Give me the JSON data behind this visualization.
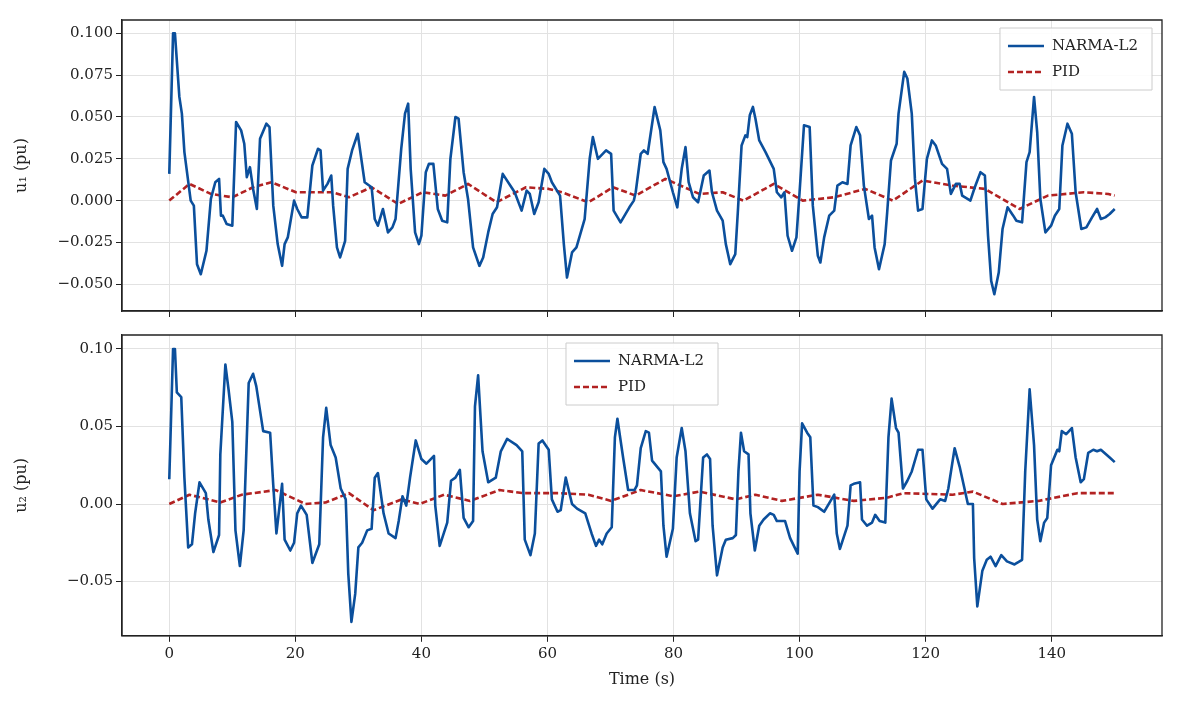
{
  "chart_data": [
    {
      "type": "line",
      "ylabel": "u₁ (pu)",
      "xlim": [
        -7.5,
        157.5
      ],
      "xticks": [
        0,
        20,
        40,
        60,
        80,
        100,
        120,
        140
      ],
      "ylim": [
        -0.066,
        0.108
      ],
      "yticks": [
        {
          "value": -0.05,
          "label": "−0.050"
        },
        {
          "value": -0.025,
          "label": "−0.025"
        },
        {
          "value": 0,
          "label": "0.000"
        },
        {
          "value": 0.025,
          "label": "0.025"
        },
        {
          "value": 0.05,
          "label": "0.050"
        },
        {
          "value": 0.075,
          "label": "0.075"
        },
        {
          "value": 0.1,
          "label": "0.100"
        }
      ],
      "tick_labels": "y",
      "grid": true,
      "legend": "top right",
      "series": [
        {
          "name": "NARMA-L2",
          "color": "#0b4f9c",
          "line_style": "solid",
          "x": [
            0,
            0.6,
            0.9,
            1.6,
            2.0,
            2.4,
            3.4,
            3.9,
            4.4,
            5.0,
            5.9,
            6.6,
            7.3,
            7.9,
            8.2,
            8.5,
            9.1,
            10.0,
            10.6,
            11.4,
            11.9,
            12.3,
            12.8,
            13.3,
            13.9,
            14.4,
            15.4,
            15.9,
            16.5,
            17.2,
            17.9,
            18.3,
            18.8,
            19.8,
            20.3,
            21.0,
            21.9,
            22.7,
            23.6,
            24.0,
            24.4,
            25.1,
            25.7,
            26.0,
            26.6,
            27.1,
            27.9,
            28.3,
            29.0,
            29.9,
            31.0,
            32.1,
            32.6,
            33.1,
            33.9,
            34.7,
            35.4,
            35.9,
            36.8,
            37.4,
            37.9,
            38.3,
            39.0,
            39.6,
            40.0,
            40.7,
            41.2,
            41.9,
            42.6,
            43.3,
            44.1,
            44.6,
            45.4,
            45.9,
            46.7,
            47.4,
            48.2,
            49.2,
            49.8,
            50.6,
            51.3,
            52.0,
            52.9,
            54.1,
            54.8,
            55.9,
            56.7,
            57.2,
            57.9,
            58.6,
            59.5,
            60.2,
            60.7,
            62.0,
            62.6,
            63.1,
            63.9,
            64.6,
            65.9,
            66.7,
            67.2,
            68.0,
            69.3,
            70.1,
            70.5,
            71.6,
            73.0,
            73.7,
            74.0,
            74.8,
            75.3,
            75.9,
            77.0,
            77.9,
            78.4,
            78.9,
            79.9,
            80.6,
            81.3,
            81.9,
            82.4,
            83.1,
            83.9,
            84.8,
            85.7,
            86.1,
            86.9,
            87.8,
            88.3,
            89.0,
            89.8,
            90.2,
            90.8,
            91.4,
            91.7,
            92.1,
            92.6,
            93.0,
            93.6,
            94.6,
            95.9,
            96.4,
            97.1,
            97.6,
            98.1,
            98.8,
            99.5,
            100.0,
            100.7,
            101.6,
            102.1,
            102.9,
            103.3,
            103.9,
            104.7,
            105.5,
            106.0,
            106.8,
            107.6,
            108.1,
            109.0,
            109.6,
            110.2,
            111.0,
            111.5,
            111.9,
            112.6,
            113.5,
            113.9,
            114.5,
            115.4,
            115.7,
            116.6,
            117.1,
            117.8,
            118.3,
            118.8,
            119.5,
            120.2,
            121.0,
            121.6,
            122.6,
            123.4,
            124.0,
            124.8,
            125.4,
            125.8,
            127.1,
            127.8,
            128.7,
            129.4,
            129.9,
            130.4,
            130.9,
            131.6,
            132.2,
            133.0,
            133.9,
            134.4,
            135.3,
            136.0,
            136.5,
            137.2,
            137.7,
            138.2,
            139.0,
            139.9,
            140.5,
            141.2,
            141.7,
            142.5,
            143.2,
            143.8,
            144.7,
            145.5,
            146.4,
            147.2,
            147.8,
            148.5,
            149.2,
            150
          ],
          "values": [
            0.016,
            0.1,
            0.1,
            0.062,
            0.052,
            0.029,
            0.0,
            -0.003,
            -0.038,
            -0.044,
            -0.03,
            0.001,
            0.011,
            0.013,
            -0.009,
            -0.009,
            -0.014,
            -0.015,
            0.047,
            0.042,
            0.034,
            0.014,
            0.02,
            0.007,
            -0.005,
            0.037,
            0.046,
            0.044,
            -0.003,
            -0.026,
            -0.039,
            -0.026,
            -0.022,
            0.0,
            -0.005,
            -0.01,
            -0.01,
            0.021,
            0.031,
            0.03,
            0.006,
            0.01,
            0.015,
            -0.003,
            -0.028,
            -0.034,
            -0.024,
            0.019,
            0.03,
            0.04,
            0.011,
            0.008,
            -0.011,
            -0.015,
            -0.005,
            -0.019,
            -0.016,
            -0.011,
            0.031,
            0.052,
            0.058,
            0.019,
            -0.019,
            -0.026,
            -0.021,
            0.017,
            0.022,
            0.022,
            -0.005,
            -0.012,
            -0.013,
            0.025,
            0.05,
            0.049,
            0.017,
            0.001,
            -0.028,
            -0.039,
            -0.034,
            -0.019,
            -0.008,
            -0.004,
            0.016,
            0.009,
            0.005,
            -0.006,
            0.006,
            0.004,
            -0.008,
            -0.001,
            0.019,
            0.016,
            0.011,
            0.003,
            -0.026,
            -0.046,
            -0.031,
            -0.028,
            -0.011,
            0.025,
            0.038,
            0.025,
            0.03,
            0.028,
            -0.006,
            -0.013,
            -0.004,
            0.0,
            0.005,
            0.028,
            0.03,
            0.028,
            0.056,
            0.042,
            0.023,
            0.019,
            0.005,
            -0.004,
            0.019,
            0.032,
            0.011,
            0.002,
            -0.001,
            0.015,
            0.018,
            0.005,
            -0.006,
            -0.012,
            -0.026,
            -0.038,
            -0.032,
            -0.007,
            0.033,
            0.039,
            0.038,
            0.051,
            0.056,
            0.049,
            0.036,
            0.029,
            0.019,
            0.005,
            0.002,
            0.005,
            -0.021,
            -0.03,
            -0.022,
            0.005,
            0.045,
            0.044,
            -0.003,
            -0.033,
            -0.037,
            -0.022,
            -0.009,
            -0.006,
            0.009,
            0.011,
            0.01,
            0.033,
            0.044,
            0.039,
            0.009,
            -0.011,
            -0.009,
            -0.028,
            -0.041,
            -0.026,
            -0.007,
            0.024,
            0.034,
            0.052,
            0.077,
            0.073,
            0.052,
            0.013,
            -0.006,
            -0.005,
            0.025,
            0.036,
            0.033,
            0.022,
            0.019,
            0.004,
            0.01,
            0.01,
            0.003,
            0.0,
            0.008,
            0.017,
            0.015,
            -0.021,
            -0.048,
            -0.056,
            -0.043,
            -0.017,
            -0.004,
            -0.009,
            -0.012,
            -0.013,
            0.023,
            0.029,
            0.062,
            0.041,
            0.001,
            -0.019,
            -0.015,
            -0.009,
            -0.005,
            0.033,
            0.046,
            0.04,
            0.005,
            -0.017,
            -0.016,
            -0.01,
            -0.005,
            -0.011,
            -0.01,
            -0.008,
            -0.005
          ]
        },
        {
          "name": "PID",
          "color": "#b22222",
          "line_style": "dashed",
          "x": [
            0,
            3.2,
            6.6,
            10.0,
            13.3,
            16.2,
            20.1,
            23.8,
            25.9,
            28.5,
            32.1,
            36.3,
            40.2,
            43.8,
            47.4,
            51.9,
            56.6,
            60.2,
            62.3,
            66.5,
            70.4,
            74.0,
            78.7,
            84.1,
            87.8,
            91.1,
            95.9,
            100.5,
            105.5,
            110.4,
            114.8,
            119.5,
            124.2,
            129.4,
            134.9,
            139.4,
            145.1,
            149.0,
            150
          ],
          "values": [
            0.0,
            0.01,
            0.004,
            0.002,
            0.008,
            0.011,
            0.005,
            0.005,
            0.005,
            0.002,
            0.008,
            -0.002,
            0.005,
            0.003,
            0.01,
            -0.001,
            0.008,
            0.007,
            0.005,
            -0.001,
            0.008,
            0.003,
            0.013,
            0.004,
            0.005,
            0.0,
            0.01,
            0.0,
            0.002,
            0.007,
            0.0,
            0.012,
            0.009,
            0.007,
            -0.005,
            0.003,
            0.005,
            0.004,
            0.003
          ]
        }
      ]
    },
    {
      "type": "line",
      "xlabel": "Time (s)",
      "ylabel": "u₂ (pu)",
      "xlim": [
        -7.5,
        157.5
      ],
      "xticks": [
        0,
        20,
        40,
        60,
        80,
        100,
        120,
        140
      ],
      "ylim": [
        -0.085,
        0.109
      ],
      "yticks": [
        {
          "value": -0.05,
          "label": "−0.05"
        },
        {
          "value": 0,
          "label": "0.00"
        },
        {
          "value": 0.05,
          "label": "0.05"
        },
        {
          "value": 0.1,
          "label": "0.10"
        }
      ],
      "grid": true,
      "legend": "top",
      "series": [
        {
          "name": "NARMA-L2",
          "color": "#0b4f9c",
          "line_style": "solid",
          "x": [
            0,
            0.6,
            0.9,
            1.2,
            1.9,
            2.4,
            3.0,
            3.6,
            4.1,
            4.8,
            5.8,
            6.2,
            7.0,
            7.9,
            8.1,
            8.9,
            9.4,
            10.0,
            10.5,
            11.2,
            11.8,
            12.6,
            13.3,
            13.8,
            14.9,
            16.0,
            16.5,
            17.0,
            17.9,
            18.3,
            19.2,
            19.8,
            20.3,
            20.9,
            21.8,
            22.7,
            23.8,
            24.4,
            24.9,
            25.6,
            26.4,
            27.2,
            28.0,
            28.4,
            28.9,
            29.5,
            30.0,
            30.6,
            31.4,
            32.1,
            32.6,
            33.1,
            34.0,
            34.8,
            35.9,
            36.4,
            37.0,
            37.6,
            38.2,
            39.1,
            40.0,
            40.8,
            42.0,
            42.2,
            42.9,
            44.1,
            44.7,
            45.4,
            46.1,
            46.7,
            47.5,
            48.2,
            48.5,
            49.0,
            49.7,
            50.6,
            51.8,
            52.6,
            53.6,
            55.1,
            56.0,
            56.4,
            57.3,
            58.0,
            58.6,
            59.2,
            60.2,
            60.7,
            61.6,
            62.1,
            62.9,
            63.9,
            64.7,
            66.0,
            67.0,
            67.7,
            68.2,
            68.7,
            69.4,
            70.2,
            70.7,
            71.1,
            72.0,
            72.8,
            73.8,
            74.2,
            74.8,
            75.6,
            76.1,
            76.6,
            78.0,
            78.4,
            78.9,
            79.9,
            80.5,
            81.3,
            81.9,
            82.6,
            83.5,
            83.9,
            84.7,
            85.3,
            85.8,
            86.2,
            86.9,
            87.8,
            88.3,
            89.4,
            89.9,
            90.3,
            90.7,
            91.2,
            91.9,
            92.2,
            92.9,
            93.6,
            94.3,
            95.3,
            95.9,
            96.4,
            97.7,
            98.5,
            99.7,
            100.0,
            100.4,
            101.2,
            101.7,
            102.2,
            102.9,
            103.9,
            105.5,
            105.9,
            106.4,
            107.6,
            108.1,
            108.6,
            109.6,
            109.9,
            110.7,
            111.5,
            112.0,
            112.7,
            113.6,
            114.1,
            114.6,
            115.3,
            115.7,
            116.4,
            117.1,
            117.8,
            118.8,
            119.5,
            120.1,
            121.1,
            122.3,
            123.1,
            123.6,
            124.6,
            125.4,
            126.7,
            127.5,
            127.7,
            128.2,
            129.0,
            129.7,
            130.3,
            131.1,
            132.0,
            132.9,
            134.1,
            135.3,
            135.8,
            136.5,
            137.2,
            137.7,
            138.2,
            138.8,
            139.3,
            139.9,
            140.9,
            141.2,
            141.6,
            142.3,
            143.2,
            143.8,
            144.6,
            145.1,
            145.8,
            146.6,
            147.2,
            147.8,
            149.2,
            150
          ],
          "values": [
            0.016,
            0.1,
            0.1,
            0.072,
            0.069,
            0.017,
            -0.028,
            -0.026,
            -0.006,
            0.014,
            0.007,
            -0.01,
            -0.031,
            -0.02,
            0.032,
            0.09,
            0.074,
            0.053,
            -0.017,
            -0.04,
            -0.017,
            0.078,
            0.084,
            0.076,
            0.047,
            0.046,
            0.012,
            -0.019,
            0.013,
            -0.023,
            -0.03,
            -0.025,
            -0.006,
            -0.001,
            -0.007,
            -0.038,
            -0.026,
            0.043,
            0.062,
            0.038,
            0.03,
            0.01,
            0.003,
            -0.045,
            -0.076,
            -0.058,
            -0.028,
            -0.025,
            -0.017,
            -0.016,
            0.017,
            0.02,
            -0.006,
            -0.019,
            -0.022,
            -0.011,
            0.005,
            -0.001,
            0.017,
            0.041,
            0.029,
            0.026,
            0.031,
            -0.001,
            -0.027,
            -0.012,
            0.015,
            0.017,
            0.022,
            -0.009,
            -0.015,
            -0.011,
            0.063,
            0.083,
            0.034,
            0.014,
            0.017,
            0.034,
            0.042,
            0.038,
            0.034,
            -0.023,
            -0.033,
            -0.019,
            0.039,
            0.041,
            0.035,
            0.003,
            -0.005,
            -0.004,
            0.017,
            0.0,
            -0.003,
            -0.006,
            -0.019,
            -0.027,
            -0.023,
            -0.026,
            -0.019,
            -0.015,
            0.043,
            0.055,
            0.03,
            0.009,
            0.009,
            0.012,
            0.036,
            0.047,
            0.046,
            0.028,
            0.021,
            -0.014,
            -0.034,
            -0.016,
            0.03,
            0.049,
            0.034,
            -0.006,
            -0.024,
            -0.023,
            0.03,
            0.032,
            0.029,
            -0.014,
            -0.046,
            -0.028,
            -0.023,
            -0.022,
            -0.02,
            0.021,
            0.046,
            0.034,
            0.032,
            -0.006,
            -0.03,
            -0.014,
            -0.01,
            -0.006,
            -0.007,
            -0.011,
            -0.011,
            -0.022,
            -0.032,
            0.021,
            0.052,
            0.046,
            0.043,
            -0.001,
            -0.002,
            -0.005,
            0.006,
            -0.019,
            -0.029,
            -0.014,
            0.012,
            0.013,
            0.014,
            -0.01,
            -0.014,
            -0.012,
            -0.007,
            -0.011,
            -0.012,
            0.043,
            0.068,
            0.049,
            0.046,
            0.01,
            0.015,
            0.021,
            0.035,
            0.035,
            0.003,
            -0.003,
            0.003,
            0.002,
            0.01,
            0.036,
            0.024,
            0.0,
            0.0,
            -0.035,
            -0.066,
            -0.043,
            -0.036,
            -0.034,
            -0.04,
            -0.033,
            -0.037,
            -0.039,
            -0.036,
            0.021,
            0.074,
            0.038,
            -0.01,
            -0.024,
            -0.012,
            -0.009,
            0.025,
            0.035,
            0.034,
            0.047,
            0.045,
            0.049,
            0.03,
            0.014,
            0.016,
            0.033,
            0.035,
            0.034,
            0.035,
            0.03,
            0.027
          ]
        },
        {
          "name": "PID",
          "color": "#b22222",
          "line_style": "dashed",
          "x": [
            0,
            3.2,
            8.1,
            11.5,
            16.9,
            21.6,
            24.8,
            28.5,
            32.4,
            36.9,
            39.7,
            43.6,
            47.7,
            52.4,
            56.1,
            61.8,
            66.5,
            70.1,
            74.8,
            80.0,
            84.1,
            89.9,
            93.0,
            97.2,
            102.9,
            108.6,
            113.8,
            116.5,
            124.3,
            127.5,
            132.2,
            137.9,
            144.1,
            148.8,
            150
          ],
          "values": [
            0.0,
            0.006,
            0.001,
            0.006,
            0.009,
            0.0,
            0.001,
            0.007,
            -0.004,
            0.003,
            0.0,
            0.006,
            0.002,
            0.009,
            0.007,
            0.007,
            0.006,
            0.002,
            0.009,
            0.005,
            0.008,
            0.003,
            0.006,
            0.002,
            0.006,
            0.002,
            0.004,
            0.007,
            0.006,
            0.008,
            0.0,
            0.002,
            0.007,
            0.007,
            0.007
          ]
        }
      ]
    }
  ]
}
